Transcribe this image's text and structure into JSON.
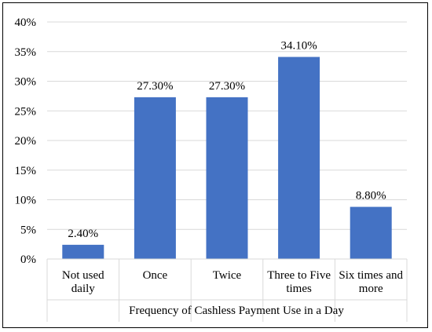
{
  "chart_data": {
    "type": "bar",
    "categories": [
      [
        "Not used",
        "daily"
      ],
      [
        "Once"
      ],
      [
        "Twice"
      ],
      [
        "Three to Five",
        "times"
      ],
      [
        "Six times and",
        "more"
      ]
    ],
    "values": [
      2.4,
      27.3,
      27.3,
      34.1,
      8.8
    ],
    "data_labels": [
      "2.40%",
      "27.30%",
      "27.30%",
      "34.10%",
      "8.80%"
    ],
    "title": "",
    "xlabel": "Frequency of Cashless Payment Use in a Day",
    "ylabel": "",
    "ylim": [
      0,
      40
    ],
    "yticks": [
      0,
      5,
      10,
      15,
      20,
      25,
      30,
      35,
      40
    ],
    "ytick_labels": [
      "0%",
      "5%",
      "10%",
      "15%",
      "20%",
      "25%",
      "30%",
      "35%",
      "40%"
    ],
    "grid": true,
    "bar_color": "#4472C4",
    "grid_color": "#D9D9D9"
  }
}
